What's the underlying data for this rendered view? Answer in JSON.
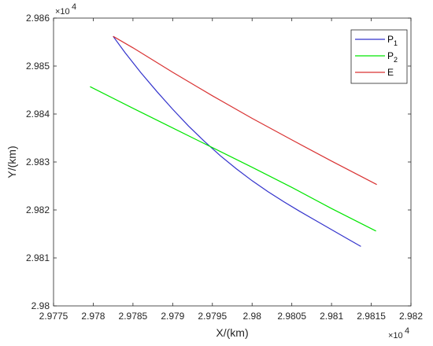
{
  "chart_data": {
    "type": "line",
    "title": "",
    "xlabel": "X/(km)",
    "ylabel": "Y/(km)",
    "x_exponent_label": "×10",
    "x_exponent_power": "4",
    "y_exponent_label": "×10",
    "y_exponent_power": "4",
    "xlim": [
      29775,
      29820
    ],
    "ylim": [
      29800,
      29860
    ],
    "x_ticks": [
      29775,
      29780,
      29785,
      29790,
      29795,
      29800,
      29805,
      29810,
      29815,
      29820
    ],
    "x_tick_labels": [
      "2.9775",
      "2.978",
      "2.9785",
      "2.979",
      "2.9795",
      "2.98",
      "2.9805",
      "2.981",
      "2.9815",
      "2.982"
    ],
    "y_ticks": [
      29800,
      29810,
      29820,
      29830,
      29840,
      29850,
      29860
    ],
    "y_tick_labels": [
      "2.98",
      "2.981",
      "2.982",
      "2.983",
      "2.984",
      "2.985",
      "2.986"
    ],
    "grid": false,
    "legend_position": "top-right",
    "series": [
      {
        "name": "P",
        "subscript": "1",
        "color": "#3333cc",
        "x": [
          29782.5,
          29784,
          29786,
          29788,
          29790,
          29792,
          29794,
          29796,
          29798,
          29800,
          29802,
          29804,
          29806,
          29808,
          29810,
          29812,
          29813.7
        ],
        "y": [
          29856.2,
          29852.8,
          29848.6,
          29844.7,
          29841.0,
          29837.5,
          29834.3,
          29831.3,
          29828.6,
          29826.1,
          29823.8,
          29821.7,
          29819.7,
          29817.8,
          29815.9,
          29814.0,
          29812.4
        ]
      },
      {
        "name": "P",
        "subscript": "2",
        "color": "#00e600",
        "x": [
          29779.6,
          29785,
          29790,
          29795,
          29800,
          29805,
          29810,
          29815.6
        ],
        "y": [
          29845.7,
          29841.2,
          29837.1,
          29833.0,
          29828.9,
          29824.7,
          29820.3,
          29815.6
        ]
      },
      {
        "name": "E",
        "subscript": "",
        "color": "#d93333",
        "x": [
          29782.5,
          29785,
          29790,
          29795,
          29800,
          29805,
          29810,
          29815.7
        ],
        "y": [
          29856.2,
          29853.8,
          29848.7,
          29843.8,
          29839.1,
          29834.6,
          29830.2,
          29825.3
        ]
      }
    ]
  }
}
